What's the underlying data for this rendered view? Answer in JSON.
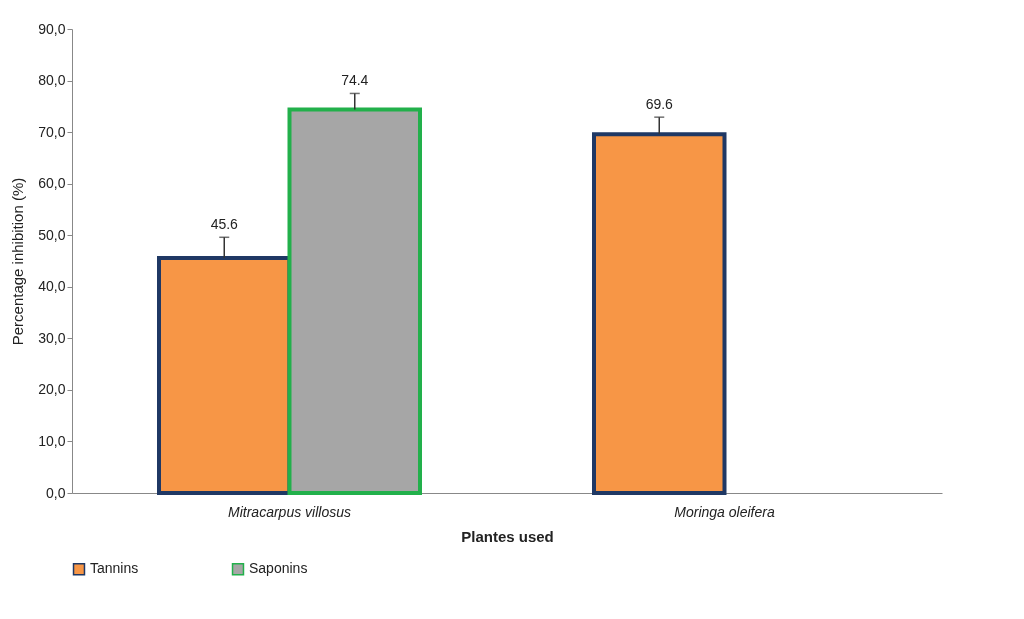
{
  "chart_data": {
    "type": "bar",
    "xlabel": "Plantes used",
    "ylabel": "Percentage inhibition (%)",
    "categories": [
      "Mitracarpus villosus",
      "Moringa oleifera"
    ],
    "series": [
      {
        "name": "Tannins",
        "color": "#f79646",
        "values": [
          45.6,
          69.6
        ],
        "errors": [
          [
            45.6,
            49.6
          ],
          [
            69.6,
            72.9
          ]
        ]
      },
      {
        "name": "Saponins",
        "color": "#a6a6a6",
        "values": [
          74.4,
          null
        ],
        "errors": [
          [
            74.4,
            77.5
          ],
          null
        ]
      }
    ],
    "ylim": [
      0,
      90
    ],
    "yticks": [
      {
        "value": 0,
        "label": "0,0"
      },
      {
        "value": 10,
        "label": "10,0"
      },
      {
        "value": 20,
        "label": "20,0"
      },
      {
        "value": 30,
        "label": "30,0"
      },
      {
        "value": 40,
        "label": "40,0"
      },
      {
        "value": 50,
        "label": "50,0"
      },
      {
        "value": 60,
        "label": "60,0"
      },
      {
        "value": 70,
        "label": "70,0"
      },
      {
        "value": 80,
        "label": "80,0"
      },
      {
        "value": 90,
        "label": "90,0"
      }
    ],
    "data_labels": true,
    "grid": false,
    "legend": "bottom"
  }
}
